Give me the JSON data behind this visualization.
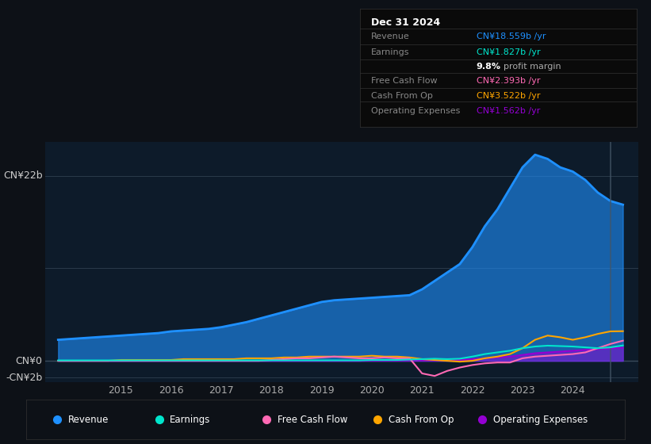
{
  "bg_color": "#0d1117",
  "plot_bg_color": "#0d1b2a",
  "y_label_top": "CN¥22b",
  "y_label_zero": "CN¥0",
  "y_label_neg": "-CN¥2b",
  "ylim": [
    -2.5,
    26
  ],
  "xlim_start": 2013.5,
  "xlim_end": 2025.3,
  "xticks": [
    2015,
    2016,
    2017,
    2018,
    2019,
    2020,
    2021,
    2022,
    2023,
    2024
  ],
  "series": {
    "Revenue": {
      "color": "#1e90ff",
      "fill_alpha": 0.6,
      "linewidth": 2.0
    },
    "Earnings": {
      "color": "#00e5cc",
      "linewidth": 1.5
    },
    "Free Cash Flow": {
      "color": "#ff69b4",
      "linewidth": 1.5
    },
    "Cash From Op": {
      "color": "#ffa500",
      "linewidth": 1.5
    },
    "Operating Expenses": {
      "color": "#9400d3",
      "fill_alpha": 0.5,
      "linewidth": 1.5
    }
  },
  "tooltip": {
    "date": "Dec 31 2024",
    "revenue": "CN¥18.559b /yr",
    "revenue_color": "#1e90ff",
    "earnings": "CN¥1.827b /yr",
    "earnings_color": "#00e5cc",
    "free_cash_flow": "CN¥2.393b /yr",
    "free_cash_flow_color": "#ff69b4",
    "cash_from_op": "CN¥3.522b /yr",
    "cash_from_op_color": "#ffa500",
    "operating_expenses": "CN¥1.562b /yr",
    "operating_expenses_color": "#9400d3"
  },
  "legend": [
    {
      "label": "Revenue",
      "color": "#1e90ff"
    },
    {
      "label": "Earnings",
      "color": "#00e5cc"
    },
    {
      "label": "Free Cash Flow",
      "color": "#ff69b4"
    },
    {
      "label": "Cash From Op",
      "color": "#ffa500"
    },
    {
      "label": "Operating Expenses",
      "color": "#9400d3"
    }
  ],
  "revenue_x": [
    2013.75,
    2014.0,
    2014.25,
    2014.5,
    2014.75,
    2015.0,
    2015.25,
    2015.5,
    2015.75,
    2016.0,
    2016.25,
    2016.5,
    2016.75,
    2017.0,
    2017.25,
    2017.5,
    2017.75,
    2018.0,
    2018.25,
    2018.5,
    2018.75,
    2019.0,
    2019.25,
    2019.5,
    2019.75,
    2020.0,
    2020.25,
    2020.5,
    2020.75,
    2021.0,
    2021.25,
    2021.5,
    2021.75,
    2022.0,
    2022.25,
    2022.5,
    2022.75,
    2023.0,
    2023.25,
    2023.5,
    2023.75,
    2024.0,
    2024.25,
    2024.5,
    2024.75,
    2025.0
  ],
  "revenue_y": [
    2.5,
    2.6,
    2.7,
    2.8,
    2.9,
    3.0,
    3.1,
    3.2,
    3.3,
    3.5,
    3.6,
    3.7,
    3.8,
    4.0,
    4.3,
    4.6,
    5.0,
    5.4,
    5.8,
    6.2,
    6.6,
    7.0,
    7.2,
    7.3,
    7.4,
    7.5,
    7.6,
    7.7,
    7.8,
    8.5,
    9.5,
    10.5,
    11.5,
    13.5,
    16.0,
    18.0,
    20.5,
    23.0,
    24.5,
    24.0,
    23.0,
    22.5,
    21.5,
    20.0,
    19.0,
    18.559
  ],
  "earnings_x": [
    2013.75,
    2014.0,
    2014.25,
    2014.5,
    2014.75,
    2015.0,
    2015.25,
    2015.5,
    2015.75,
    2016.0,
    2016.25,
    2016.5,
    2016.75,
    2017.0,
    2017.25,
    2017.5,
    2017.75,
    2018.0,
    2018.25,
    2018.5,
    2018.75,
    2019.0,
    2019.25,
    2019.5,
    2019.75,
    2020.0,
    2020.25,
    2020.5,
    2020.75,
    2021.0,
    2021.25,
    2021.5,
    2021.75,
    2022.0,
    2022.25,
    2022.5,
    2022.75,
    2023.0,
    2023.25,
    2023.5,
    2023.75,
    2024.0,
    2024.25,
    2024.5,
    2024.75,
    2025.0
  ],
  "earnings_y": [
    0.05,
    0.05,
    0.05,
    0.05,
    0.05,
    0.05,
    0.05,
    0.05,
    0.05,
    0.05,
    0.05,
    0.05,
    0.05,
    0.05,
    0.05,
    0.05,
    0.05,
    0.05,
    0.05,
    0.05,
    0.05,
    0.05,
    0.05,
    0.05,
    0.05,
    0.1,
    0.1,
    0.1,
    0.15,
    0.2,
    0.25,
    0.2,
    0.25,
    0.5,
    0.8,
    1.0,
    1.2,
    1.5,
    1.7,
    1.8,
    1.75,
    1.7,
    1.6,
    1.5,
    1.6,
    1.827
  ],
  "fcf_x": [
    2013.75,
    2014.0,
    2014.25,
    2014.5,
    2014.75,
    2015.0,
    2015.25,
    2015.5,
    2015.75,
    2016.0,
    2016.25,
    2016.5,
    2016.75,
    2017.0,
    2017.25,
    2017.5,
    2017.75,
    2018.0,
    2018.25,
    2018.5,
    2018.75,
    2019.0,
    2019.25,
    2019.5,
    2019.75,
    2020.0,
    2020.25,
    2020.5,
    2020.75,
    2021.0,
    2021.25,
    2021.5,
    2021.75,
    2022.0,
    2022.25,
    2022.5,
    2022.75,
    2023.0,
    2023.25,
    2023.5,
    2023.75,
    2024.0,
    2024.25,
    2024.5,
    2024.75,
    2025.0
  ],
  "fcf_y": [
    0.0,
    0.0,
    0.0,
    0.0,
    0.0,
    0.0,
    0.0,
    0.0,
    0.0,
    0.0,
    0.0,
    0.0,
    0.0,
    0.0,
    0.0,
    0.0,
    0.0,
    0.1,
    0.2,
    0.3,
    0.3,
    0.4,
    0.5,
    0.4,
    0.3,
    0.3,
    0.4,
    0.3,
    0.3,
    -1.5,
    -1.8,
    -1.2,
    -0.8,
    -0.5,
    -0.3,
    -0.2,
    -0.2,
    0.3,
    0.5,
    0.6,
    0.7,
    0.8,
    1.0,
    1.5,
    2.0,
    2.393
  ],
  "cashfromop_x": [
    2013.75,
    2014.0,
    2014.25,
    2014.5,
    2014.75,
    2015.0,
    2015.25,
    2015.5,
    2015.75,
    2016.0,
    2016.25,
    2016.5,
    2016.75,
    2017.0,
    2017.25,
    2017.5,
    2017.75,
    2018.0,
    2018.25,
    2018.5,
    2018.75,
    2019.0,
    2019.25,
    2019.5,
    2019.75,
    2020.0,
    2020.25,
    2020.5,
    2020.75,
    2021.0,
    2021.25,
    2021.5,
    2021.75,
    2022.0,
    2022.25,
    2022.5,
    2022.75,
    2023.0,
    2023.25,
    2023.5,
    2023.75,
    2024.0,
    2024.25,
    2024.5,
    2024.75,
    2025.0
  ],
  "cashfromop_y": [
    0.0,
    0.0,
    0.0,
    0.0,
    0.0,
    0.1,
    0.1,
    0.1,
    0.1,
    0.1,
    0.2,
    0.2,
    0.2,
    0.2,
    0.2,
    0.3,
    0.3,
    0.3,
    0.4,
    0.4,
    0.5,
    0.5,
    0.5,
    0.5,
    0.5,
    0.6,
    0.5,
    0.5,
    0.4,
    0.2,
    0.1,
    0.0,
    -0.1,
    0.0,
    0.3,
    0.5,
    0.8,
    1.5,
    2.5,
    3.0,
    2.8,
    2.5,
    2.8,
    3.2,
    3.5,
    3.522
  ],
  "opex_x": [
    2013.75,
    2014.0,
    2014.25,
    2014.5,
    2014.75,
    2015.0,
    2015.25,
    2015.5,
    2015.75,
    2016.0,
    2016.25,
    2016.5,
    2016.75,
    2017.0,
    2017.25,
    2017.5,
    2017.75,
    2018.0,
    2018.25,
    2018.5,
    2018.75,
    2019.0,
    2019.25,
    2019.5,
    2019.75,
    2020.0,
    2020.25,
    2020.5,
    2020.75,
    2021.0,
    2021.25,
    2021.5,
    2021.75,
    2022.0,
    2022.25,
    2022.5,
    2022.75,
    2023.0,
    2023.25,
    2023.5,
    2023.75,
    2024.0,
    2024.25,
    2024.5,
    2024.75,
    2025.0
  ],
  "opex_y": [
    0.0,
    0.0,
    0.0,
    0.0,
    0.0,
    0.0,
    0.0,
    0.0,
    0.0,
    0.0,
    0.0,
    0.0,
    0.0,
    0.0,
    0.0,
    0.0,
    0.0,
    0.0,
    0.0,
    0.0,
    0.0,
    0.0,
    0.0,
    0.0,
    0.0,
    0.05,
    0.05,
    0.05,
    0.05,
    0.05,
    0.05,
    0.05,
    0.1,
    0.2,
    0.3,
    0.4,
    0.5,
    0.7,
    0.9,
    1.0,
    1.1,
    1.2,
    1.3,
    1.4,
    1.5,
    1.562
  ]
}
